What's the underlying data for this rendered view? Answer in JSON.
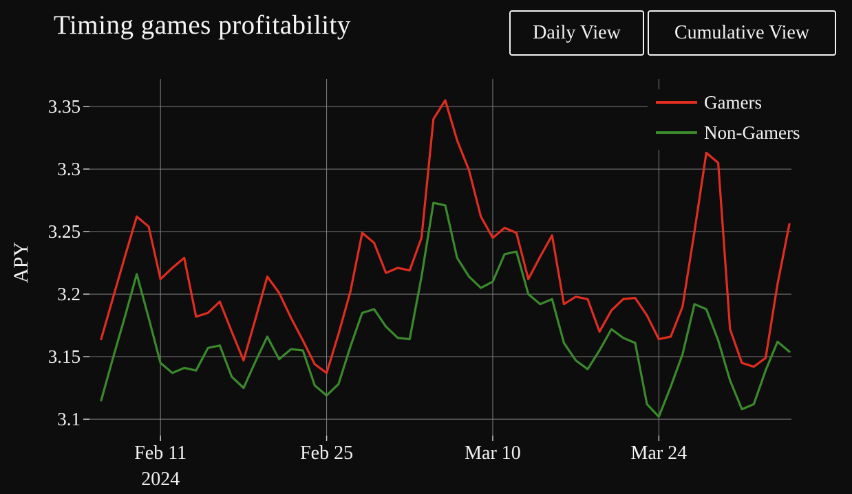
{
  "header": {
    "title": "Timing games profitability"
  },
  "toolbar": {
    "daily_label": "Daily View",
    "cumulative_label": "Cumulative View"
  },
  "colors": {
    "background": "#0d0d0d",
    "text": "#f2f2f2",
    "gridline": "#808080",
    "tick": "#c8c8c8",
    "gamers_red": "#e02d1f",
    "non_gamers_green": "#3a8a2c"
  },
  "chart_data": {
    "type": "line",
    "title": "Timing games profitability",
    "xlabel": "",
    "ylabel": "APY",
    "grid": true,
    "legend_position": "top-right",
    "ylim": [
      3.088,
      3.372
    ],
    "y_ticks": [
      3.1,
      3.15,
      3.2,
      3.25,
      3.3,
      3.35
    ],
    "x_tick_labels": [
      "Feb 11",
      "Feb 25",
      "Mar 10",
      "Mar 24"
    ],
    "x_tick_indices": [
      5,
      19,
      33,
      47
    ],
    "x_axis_year_label": "2024",
    "categories": [
      "Feb 6",
      "Feb 7",
      "Feb 8",
      "Feb 9",
      "Feb 10",
      "Feb 11",
      "Feb 12",
      "Feb 13",
      "Feb 14",
      "Feb 15",
      "Feb 16",
      "Feb 17",
      "Feb 18",
      "Feb 19",
      "Feb 20",
      "Feb 21",
      "Feb 22",
      "Feb 23",
      "Feb 24",
      "Feb 25",
      "Feb 26",
      "Feb 27",
      "Feb 28",
      "Feb 29",
      "Mar 1",
      "Mar 2",
      "Mar 3",
      "Mar 4",
      "Mar 5",
      "Mar 6",
      "Mar 7",
      "Mar 8",
      "Mar 9",
      "Mar 10",
      "Mar 11",
      "Mar 12",
      "Mar 13",
      "Mar 14",
      "Mar 15",
      "Mar 16",
      "Mar 17",
      "Mar 18",
      "Mar 19",
      "Mar 20",
      "Mar 21",
      "Mar 22",
      "Mar 23",
      "Mar 24",
      "Mar 25",
      "Mar 26",
      "Mar 27",
      "Mar 28",
      "Mar 29",
      "Mar 30",
      "Mar 31",
      "Apr 1",
      "Apr 2",
      "Apr 3",
      "Apr 4"
    ],
    "series": [
      {
        "name": "Gamers",
        "color": "#e02d1f",
        "values": [
          3.164,
          3.197,
          3.23,
          3.262,
          3.254,
          3.212,
          3.221,
          3.229,
          3.182,
          3.185,
          3.194,
          3.17,
          3.147,
          3.18,
          3.214,
          3.201,
          3.181,
          3.163,
          3.144,
          3.137,
          3.168,
          3.202,
          3.249,
          3.241,
          3.217,
          3.221,
          3.219,
          3.245,
          3.34,
          3.355,
          3.323,
          3.299,
          3.262,
          3.245,
          3.253,
          3.249,
          3.212,
          3.23,
          3.247,
          3.192,
          3.198,
          3.196,
          3.17,
          3.187,
          3.196,
          3.197,
          3.183,
          3.164,
          3.166,
          3.19,
          3.25,
          3.313,
          3.305,
          3.172,
          3.145,
          3.142,
          3.149,
          3.208,
          3.256
        ]
      },
      {
        "name": "Non-Gamers",
        "color": "#3a8a2c",
        "values": [
          3.115,
          3.149,
          3.182,
          3.216,
          3.181,
          3.145,
          3.137,
          3.141,
          3.139,
          3.157,
          3.159,
          3.134,
          3.125,
          3.146,
          3.166,
          3.148,
          3.156,
          3.155,
          3.127,
          3.119,
          3.128,
          3.158,
          3.185,
          3.188,
          3.174,
          3.165,
          3.164,
          3.214,
          3.273,
          3.271,
          3.229,
          3.214,
          3.205,
          3.21,
          3.232,
          3.234,
          3.2,
          3.192,
          3.196,
          3.161,
          3.147,
          3.14,
          3.155,
          3.172,
          3.165,
          3.161,
          3.112,
          3.102,
          3.126,
          3.152,
          3.192,
          3.188,
          3.163,
          3.131,
          3.108,
          3.112,
          3.139,
          3.162,
          3.154
        ]
      }
    ]
  }
}
